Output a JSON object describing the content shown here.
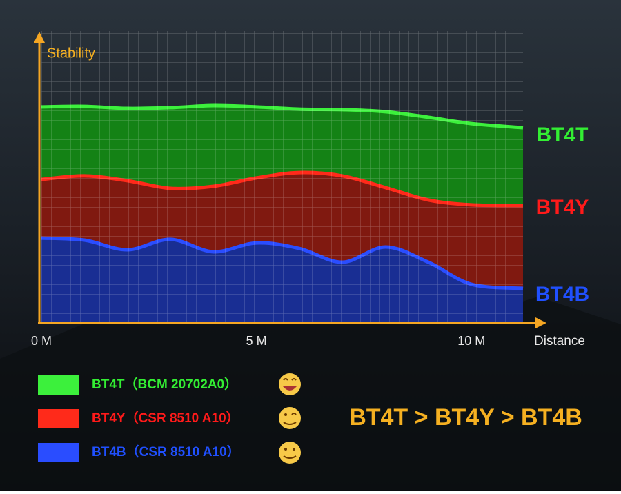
{
  "chart_data": {
    "type": "area",
    "y_label": "Stability",
    "x_label": "Distance",
    "x": [
      0,
      1,
      2,
      3,
      4,
      5,
      6,
      7,
      8,
      9,
      10,
      11.2
    ],
    "xlim": [
      0,
      11.2
    ],
    "xticks": [
      {
        "value": 0,
        "label": "0 M"
      },
      {
        "value": 5,
        "label": "5 M"
      },
      {
        "value": 10,
        "label": "10 M"
      }
    ],
    "ylim": [
      0,
      100
    ],
    "grid": true,
    "series": [
      {
        "name": "BT4T",
        "legend": "BT4T（BCM 20702A0）",
        "color": "#138a13",
        "line_color": "#3cf03c",
        "label_color": "#33ee33",
        "values": [
          85.1,
          85.3,
          84.5,
          84.8,
          85.6,
          85.1,
          84.2,
          84.0,
          83.2,
          81.0,
          78.5,
          76.9
        ]
      },
      {
        "name": "BT4Y",
        "legend": "BT4Y（CSR 8510 A10）",
        "color": "#8a1010",
        "line_color": "#ff2a1a",
        "label_color": "#ff1a1a",
        "values": [
          56.5,
          57.9,
          56.0,
          53.0,
          53.8,
          57.1,
          59.2,
          57.9,
          53.3,
          48.4,
          46.5,
          46.2
        ]
      },
      {
        "name": "BT4B",
        "legend": "BT4B（CSR 8510 A10）",
        "color": "#10309e",
        "line_color": "#2a4dff",
        "label_color": "#2050ff",
        "values": [
          33.4,
          32.6,
          28.8,
          32.9,
          28.0,
          31.5,
          29.3,
          23.9,
          29.9,
          23.9,
          15.2,
          13.6
        ]
      }
    ],
    "annotation": "BT4T > BT4Y > BT4B"
  }
}
